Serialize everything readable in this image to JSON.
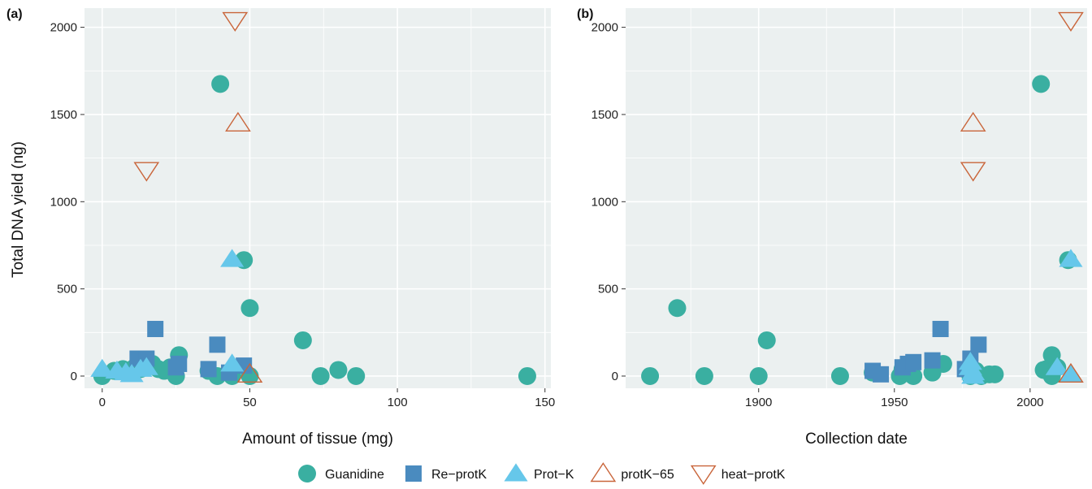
{
  "figure": {
    "y_axis_title": "Total DNA yield (ng)",
    "legend": {
      "position": "bottom",
      "items": [
        {
          "label": "Guanidine",
          "symbol": "circle",
          "color": "#3aafa1"
        },
        {
          "label": "Re−protK",
          "symbol": "square",
          "color": "#4a8bbf"
        },
        {
          "label": "Prot−K",
          "symbol": "triangle-up",
          "color": "#66c7ea"
        },
        {
          "label": "protK−65",
          "symbol": "triangle-up-open",
          "color": "#c9653a"
        },
        {
          "label": "heat−protK",
          "symbol": "triangle-down-open",
          "color": "#c9653a"
        }
      ]
    },
    "panel_background": "#ebf0f0",
    "grid_color": "#ffffff"
  },
  "chart_data": [
    {
      "type": "scatter",
      "panel_label": "(a)",
      "xlabel": "Amount of tissue (mg)",
      "ylabel": "Total DNA yield (ng)",
      "xlim": [
        -6,
        152
      ],
      "ylim": [
        -70,
        2110
      ],
      "xticks": [
        0,
        50,
        100,
        150
      ],
      "yticks": [
        0,
        500,
        1000,
        1500,
        2000
      ],
      "grid": true,
      "series": [
        {
          "name": "Guanidine",
          "points": [
            [
              0,
              0
            ],
            [
              4,
              30
            ],
            [
              7,
              40
            ],
            [
              9,
              20
            ],
            [
              11,
              50
            ],
            [
              13,
              40
            ],
            [
              15,
              60
            ],
            [
              17,
              70
            ],
            [
              19,
              40
            ],
            [
              21,
              30
            ],
            [
              23,
              50
            ],
            [
              25,
              0
            ],
            [
              26,
              120
            ],
            [
              36,
              30
            ],
            [
              39,
              0
            ],
            [
              40,
              1675
            ],
            [
              44,
              0
            ],
            [
              48,
              665
            ],
            [
              50,
              390
            ],
            [
              50,
              0
            ],
            [
              68,
              205
            ],
            [
              74,
              0
            ],
            [
              80,
              35
            ],
            [
              86,
              0
            ],
            [
              144,
              0
            ]
          ]
        },
        {
          "name": "Re−protK",
          "points": [
            [
              12,
              100
            ],
            [
              15,
              100
            ],
            [
              18,
              270
            ],
            [
              25,
              50
            ],
            [
              26,
              70
            ],
            [
              36,
              40
            ],
            [
              39,
              180
            ],
            [
              43,
              20
            ],
            [
              48,
              60
            ]
          ]
        },
        {
          "name": "Prot−K",
          "points": [
            [
              0,
              40
            ],
            [
              5,
              30
            ],
            [
              8,
              20
            ],
            [
              10,
              10
            ],
            [
              13,
              40
            ],
            [
              15,
              50
            ],
            [
              44,
              670
            ],
            [
              44,
              70
            ]
          ]
        },
        {
          "name": "protK−65",
          "points": [
            [
              46,
              1450
            ],
            [
              50,
              10
            ]
          ]
        },
        {
          "name": "heat−protK",
          "points": [
            [
              15,
              1180
            ],
            [
              45,
              2040
            ]
          ]
        }
      ]
    },
    {
      "type": "scatter",
      "panel_label": "(b)",
      "xlabel": "Collection date",
      "ylabel": "",
      "xlim": [
        1851,
        2021
      ],
      "ylim": [
        -70,
        2110
      ],
      "xticks": [
        1900,
        1950,
        2000
      ],
      "yticks": [
        0,
        500,
        1000,
        1500,
        2000
      ],
      "grid": true,
      "series": [
        {
          "name": "Guanidine",
          "points": [
            [
              1860,
              0
            ],
            [
              1870,
              390
            ],
            [
              1880,
              0
            ],
            [
              1900,
              0
            ],
            [
              1903,
              205
            ],
            [
              1930,
              0
            ],
            [
              1942,
              20
            ],
            [
              1952,
              0
            ],
            [
              1953,
              40
            ],
            [
              1957,
              0
            ],
            [
              1964,
              20
            ],
            [
              1968,
              70
            ],
            [
              1978,
              0
            ],
            [
              1980,
              30
            ],
            [
              1982,
              0
            ],
            [
              1985,
              10
            ],
            [
              1987,
              10
            ],
            [
              2004,
              1675
            ],
            [
              2005,
              35
            ],
            [
              2006,
              40
            ],
            [
              2008,
              120
            ],
            [
              2008,
              0
            ],
            [
              2010,
              50
            ],
            [
              2014,
              665
            ]
          ]
        },
        {
          "name": "Re−protK",
          "points": [
            [
              1942,
              30
            ],
            [
              1945,
              10
            ],
            [
              1953,
              50
            ],
            [
              1955,
              70
            ],
            [
              1957,
              80
            ],
            [
              1964,
              90
            ],
            [
              1967,
              270
            ],
            [
              1976,
              40
            ],
            [
              1978,
              100
            ],
            [
              1981,
              180
            ]
          ]
        },
        {
          "name": "Prot−K",
          "points": [
            [
              1978,
              80
            ],
            [
              1978,
              50
            ],
            [
              1979,
              20
            ],
            [
              1979,
              0
            ],
            [
              2010,
              50
            ],
            [
              2015,
              670
            ],
            [
              2015,
              10
            ]
          ]
        },
        {
          "name": "protK−65",
          "points": [
            [
              1979,
              1450
            ],
            [
              2015,
              10
            ]
          ]
        },
        {
          "name": "heat−protK",
          "points": [
            [
              1979,
              1180
            ],
            [
              2015,
              2040
            ]
          ]
        }
      ]
    }
  ]
}
